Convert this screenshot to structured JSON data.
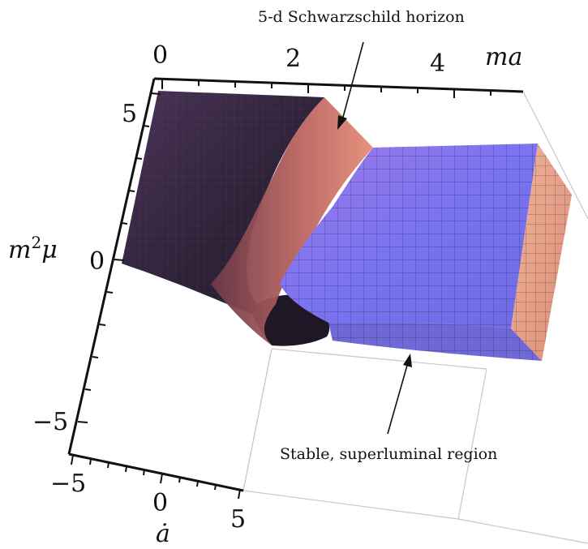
{
  "annotations": {
    "horizon": "5-d Schwarzschild horizon",
    "stable_region": "Stable, superluminal region"
  },
  "axes": {
    "ma": {
      "title": "ma",
      "ticks": [
        "0",
        "2",
        "4"
      ]
    },
    "m2mu": {
      "title_base": "m",
      "title_sup": "2",
      "title_tail": "μ",
      "ticks": [
        "5",
        "0",
        "−5"
      ]
    },
    "adot": {
      "title": "ȧ",
      "ticks": [
        "−5",
        "0",
        "5"
      ]
    }
  },
  "colors": {
    "dark_surface": "#3b2a45",
    "horizon_surface": "#c46b63",
    "stable_surface": "#7c74f0",
    "end_face": "#e8a58d",
    "bounding_box": "#c8c8c8",
    "axis": "#111111"
  }
}
